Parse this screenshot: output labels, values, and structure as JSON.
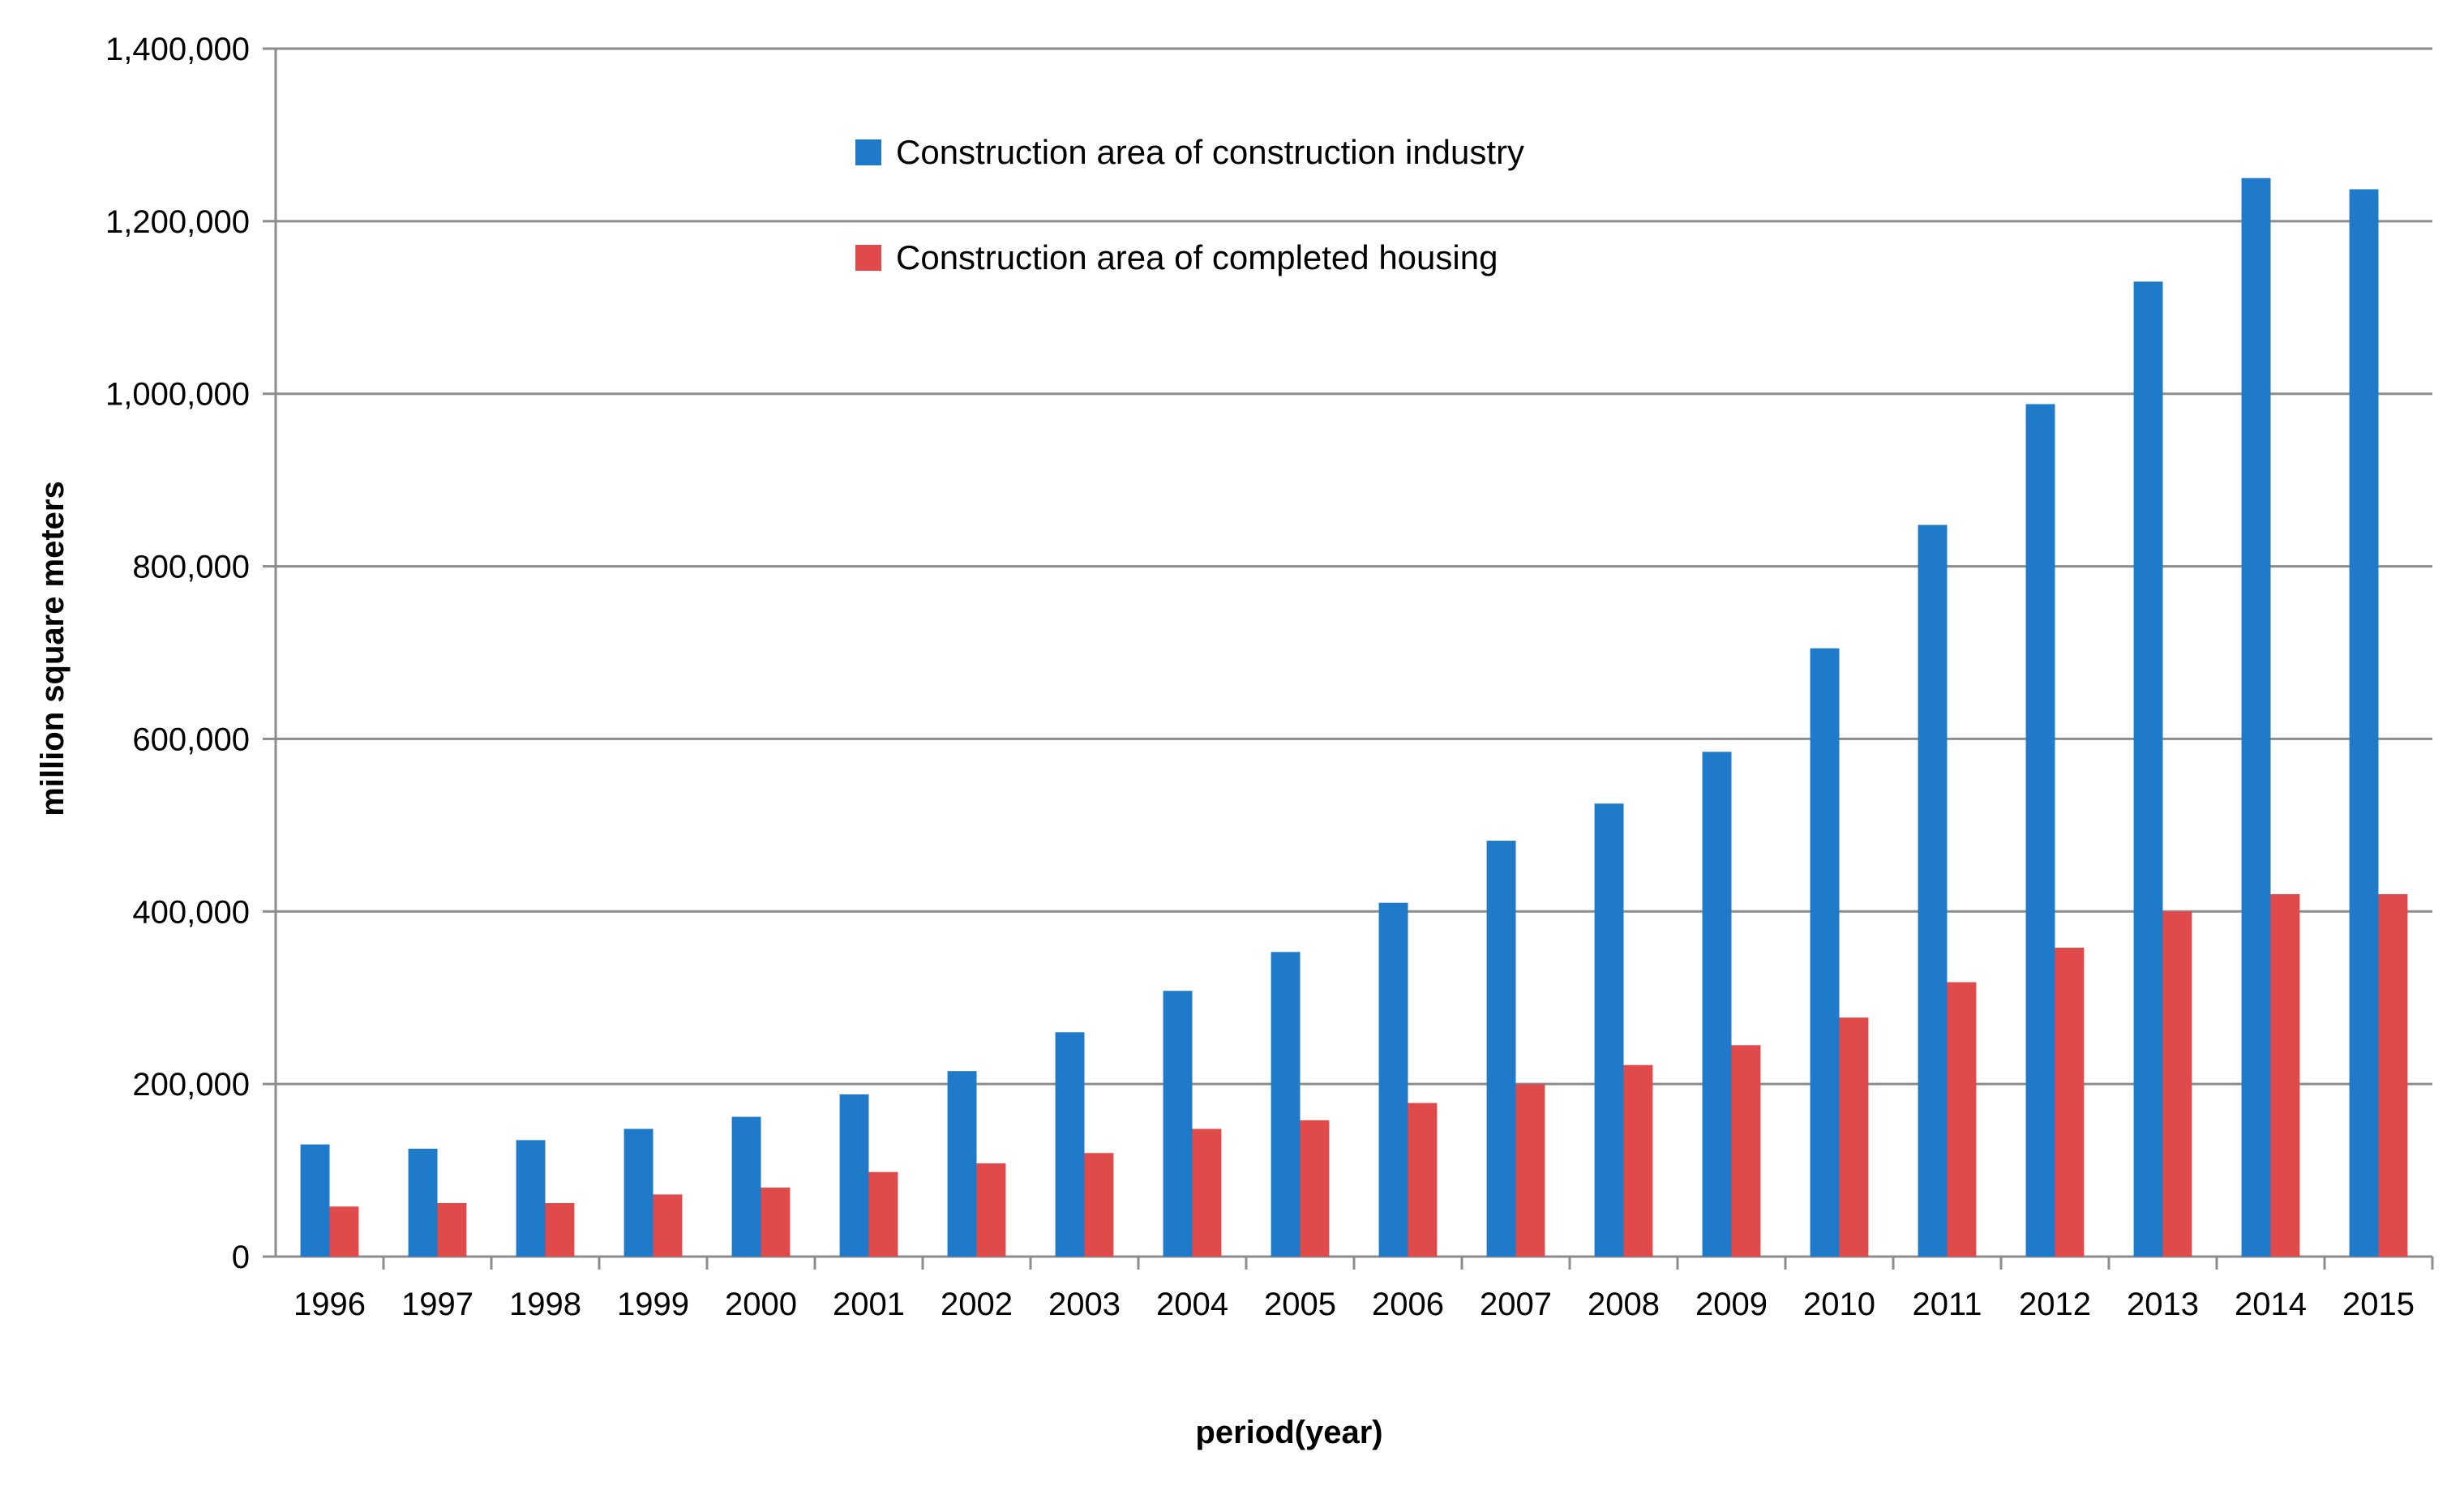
{
  "chart_data": {
    "type": "bar",
    "title": "",
    "xlabel": "period(year)",
    "ylabel": "million square meters",
    "ylim": [
      0,
      1400000
    ],
    "yticks": [
      "0",
      "200,000",
      "400,000",
      "600,000",
      "800,000",
      "1,000,000",
      "1,200,000",
      "1,400,000"
    ],
    "grid": true,
    "legend_position": "top-center",
    "categories": [
      "1996",
      "1997",
      "1998",
      "1999",
      "2000",
      "2001",
      "2002",
      "2003",
      "2004",
      "2005",
      "2006",
      "2007",
      "2008",
      "2009",
      "2010",
      "2011",
      "2012",
      "2013",
      "2014",
      "2015"
    ],
    "series": [
      {
        "name": "Construction area of construction industry",
        "color": "#1f7bc9",
        "values": [
          130000,
          125000,
          135000,
          148000,
          162000,
          188000,
          215000,
          260000,
          308000,
          353000,
          410000,
          482000,
          525000,
          585000,
          705000,
          848000,
          988000,
          1130000,
          1250000,
          1237000
        ]
      },
      {
        "name": "Construction area of completed housing",
        "color": "#e04a4a",
        "values": [
          58000,
          62000,
          62000,
          72000,
          80000,
          98000,
          108000,
          120000,
          148000,
          158000,
          178000,
          200000,
          222000,
          245000,
          277000,
          318000,
          358000,
          400000,
          420000,
          420000
        ]
      }
    ]
  }
}
